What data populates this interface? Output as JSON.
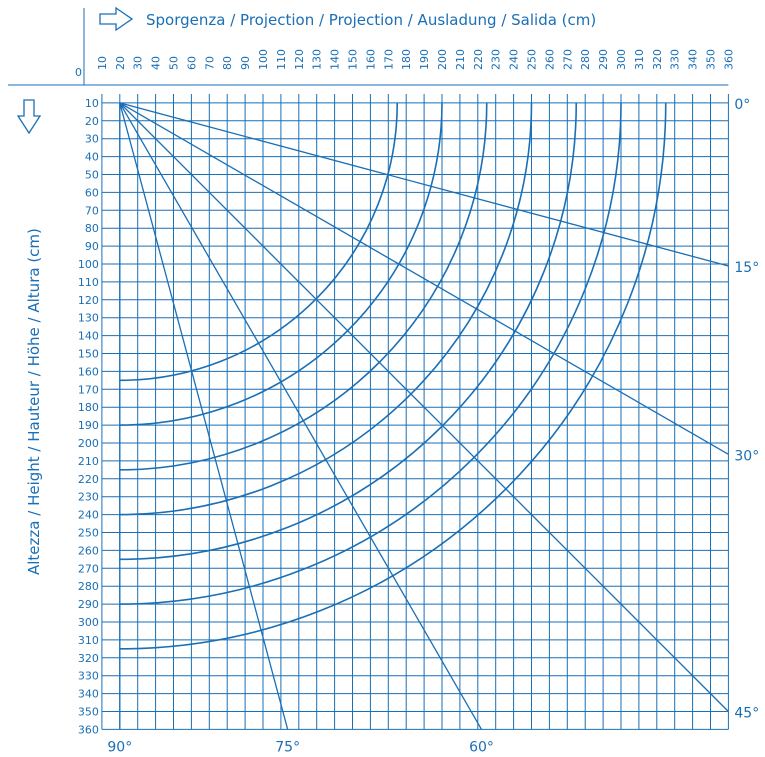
{
  "chart_data": {
    "type": "line",
    "xlabel": "Sporgenza / Projection / Projection / Ausladung / Salida (cm)",
    "ylabel": "Altezza / Height / Hauteur / Höhe / Altura (cm)",
    "origin_label": "0",
    "x_ticks": [
      "10",
      "20",
      "30",
      "40",
      "50",
      "60",
      "70",
      "80",
      "90",
      "100",
      "110",
      "120",
      "130",
      "140",
      "150",
      "160",
      "170",
      "180",
      "190",
      "200",
      "210",
      "220",
      "230",
      "240",
      "250",
      "260",
      "270",
      "280",
      "290",
      "300",
      "310",
      "320",
      "330",
      "340",
      "350",
      "360"
    ],
    "y_ticks": [
      "10",
      "20",
      "30",
      "40",
      "50",
      "60",
      "70",
      "80",
      "90",
      "100",
      "110",
      "120",
      "130",
      "140",
      "150",
      "160",
      "170",
      "180",
      "190",
      "200",
      "210",
      "220",
      "230",
      "240",
      "250",
      "260",
      "270",
      "280",
      "290",
      "300",
      "310",
      "320",
      "330",
      "340",
      "350",
      "360"
    ],
    "xlim": [
      0,
      360
    ],
    "ylim": [
      0,
      360
    ],
    "pivot": {
      "x": 20,
      "y": 10
    },
    "arc_radii": [
      155,
      180,
      205,
      230,
      255,
      280,
      305
    ],
    "angle_rays": [
      {
        "label": "0°",
        "angle": 0
      },
      {
        "label": "15°",
        "angle": 15
      },
      {
        "label": "30°",
        "angle": 30
      },
      {
        "label": "45°",
        "angle": 45
      },
      {
        "label": "60°",
        "angle": 60
      },
      {
        "label": "75°",
        "angle": 75
      },
      {
        "label": "90°",
        "angle": 90
      }
    ],
    "grid": true
  }
}
